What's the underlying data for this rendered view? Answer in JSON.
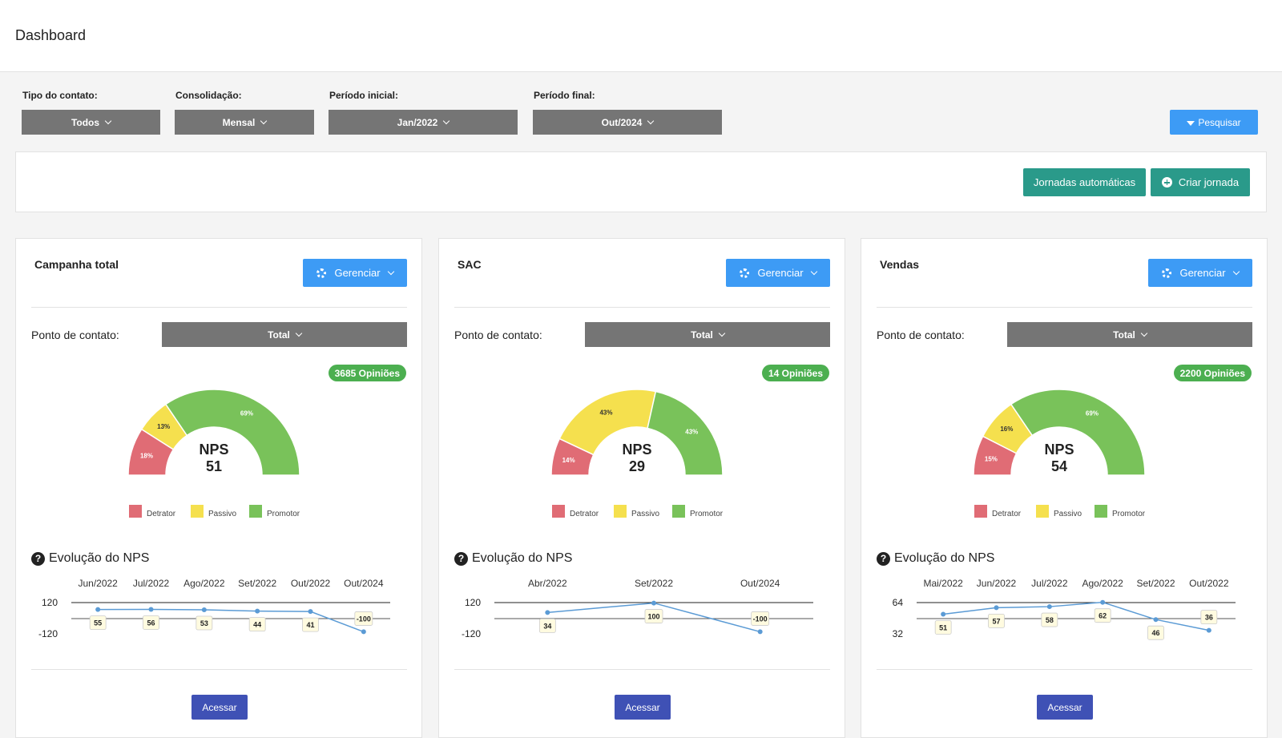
{
  "header": {
    "title": "Dashboard"
  },
  "filters": {
    "tipo": {
      "label": "Tipo do contato:",
      "value": "Todos"
    },
    "consolidacao": {
      "label": "Consolidação:",
      "value": "Mensal"
    },
    "inicial": {
      "label": "Período inicial:",
      "value": "Jan/2022"
    },
    "final": {
      "label": "Período final:",
      "value": "Out/2024"
    },
    "search_label": "Pesquisar"
  },
  "actions": {
    "auto_label": "Jornadas automáticas",
    "create_label": "Criar jornada"
  },
  "colors": {
    "detrator": "#e06c75",
    "passivo": "#f5e04e",
    "promotor": "#79c25a",
    "line": "#5b9bd5",
    "badge": "#4caf50"
  },
  "cards": [
    {
      "title": "Campanha total",
      "manage_label": "Gerenciar",
      "contact_label": "Ponto de contato:",
      "contact_value": "Total",
      "opinions": "3685 Opiniões",
      "nps_label": "NPS",
      "nps_value": "51",
      "gauge": {
        "detrator": 18,
        "passivo": 13,
        "promotor": 69
      },
      "legend": [
        "Detrator",
        "Passivo",
        "Promotor"
      ],
      "evolution_title": "Evolução do NPS",
      "access_label": "Acessar",
      "chart_data": {
        "type": "line",
        "x": [
          "Jun/2022",
          "Jul/2022",
          "Ago/2022",
          "Set/2022",
          "Out/2022",
          "Out/2024"
        ],
        "values": [
          55,
          56,
          53,
          44,
          41,
          -100
        ],
        "ytick_top": "120",
        "ytick_bottom": "-120",
        "ylim": [
          -120,
          120
        ]
      }
    },
    {
      "title": "SAC",
      "manage_label": "Gerenciar",
      "contact_label": "Ponto de contato:",
      "contact_value": "Total",
      "opinions": "14 Opiniões",
      "nps_label": "NPS",
      "nps_value": "29",
      "gauge": {
        "detrator": 14,
        "passivo": 43,
        "promotor": 43
      },
      "legend": [
        "Detrator",
        "Passivo",
        "Promotor"
      ],
      "evolution_title": "Evolução do NPS",
      "access_label": "Acessar",
      "chart_data": {
        "type": "line",
        "x": [
          "Abr/2022",
          "Set/2022",
          "Out/2024"
        ],
        "values": [
          34,
          100,
          -100
        ],
        "ytick_top": "120",
        "ytick_bottom": "-120",
        "ylim": [
          -120,
          120
        ]
      }
    },
    {
      "title": "Vendas",
      "manage_label": "Gerenciar",
      "contact_label": "Ponto de contato:",
      "contact_value": "Total",
      "opinions": "2200 Opiniões",
      "nps_label": "NPS",
      "nps_value": "54",
      "gauge": {
        "detrator": 15,
        "passivo": 16,
        "promotor": 69
      },
      "legend": [
        "Detrator",
        "Passivo",
        "Promotor"
      ],
      "evolution_title": "Evolução do NPS",
      "access_label": "Acessar",
      "chart_data": {
        "type": "line",
        "x": [
          "Mai/2022",
          "Jun/2022",
          "Jul/2022",
          "Ago/2022",
          "Set/2022",
          "Out/2022"
        ],
        "values": [
          51,
          57,
          58,
          62,
          46,
          36
        ],
        "ytick_top": "64",
        "ytick_bottom": "32",
        "ylim": [
          32,
          64
        ]
      }
    }
  ]
}
